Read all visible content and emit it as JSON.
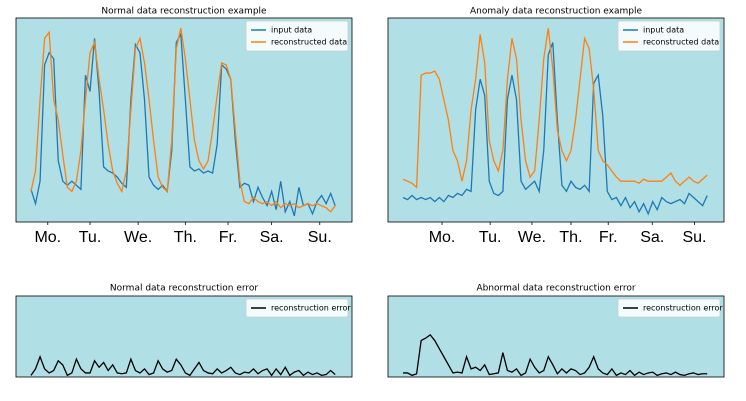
{
  "chart_data": [
    {
      "type": "line",
      "title": "Normal data reconstruction example",
      "x": [
        0,
        1,
        2,
        3,
        4,
        5,
        6,
        7,
        8,
        9,
        10,
        11,
        12,
        13,
        14,
        15,
        16,
        17,
        18,
        19,
        20,
        21,
        22,
        23,
        24,
        25,
        26,
        27,
        28,
        29,
        30,
        31,
        32,
        33,
        34,
        35,
        36,
        37,
        38,
        39,
        40,
        41,
        42,
        43,
        44,
        45,
        46,
        47,
        48,
        49,
        50,
        51,
        52,
        53,
        54,
        55,
        56,
        57,
        58,
        59,
        60,
        61,
        62,
        63,
        64,
        65,
        66,
        67
      ],
      "xlim": [
        -3.3,
        70.7
      ],
      "ylim": [
        0,
        1
      ],
      "xticks": [
        {
          "value": 3.7,
          "label": "Mo."
        },
        {
          "value": 13,
          "label": "Tu."
        },
        {
          "value": 23.6,
          "label": "We."
        },
        {
          "value": 34,
          "label": "Th."
        },
        {
          "value": 43.4,
          "label": "Fr."
        },
        {
          "value": 53,
          "label": "Sa."
        },
        {
          "value": 63.6,
          "label": "Su."
        }
      ],
      "facecolor": "#b0e0e6",
      "legend": "upper right",
      "series": [
        {
          "name": "input data",
          "color": "#1f77b4",
          "values": [
            0.16,
            0.09,
            0.2,
            0.77,
            0.83,
            0.8,
            0.3,
            0.2,
            0.18,
            0.2,
            0.18,
            0.16,
            0.72,
            0.64,
            0.9,
            0.64,
            0.27,
            0.25,
            0.24,
            0.22,
            0.19,
            0.17,
            0.6,
            0.87,
            0.83,
            0.6,
            0.22,
            0.18,
            0.16,
            0.18,
            0.15,
            0.35,
            0.88,
            0.92,
            0.6,
            0.27,
            0.25,
            0.26,
            0.24,
            0.25,
            0.24,
            0.38,
            0.77,
            0.75,
            0.7,
            0.4,
            0.17,
            0.19,
            0.18,
            0.1,
            0.17,
            0.12,
            0.08,
            0.15,
            0.06,
            0.2,
            0.05,
            0.1,
            0.03,
            0.17,
            0.08,
            0.09,
            0.04,
            0.1,
            0.13,
            0.09,
            0.14,
            0.08
          ]
        },
        {
          "name": "reconstructed data",
          "color": "#ff7f0e",
          "values": [
            0.15,
            0.25,
            0.6,
            0.9,
            0.93,
            0.6,
            0.5,
            0.33,
            0.17,
            0.15,
            0.2,
            0.35,
            0.6,
            0.83,
            0.88,
            0.7,
            0.55,
            0.38,
            0.25,
            0.19,
            0.15,
            0.25,
            0.55,
            0.85,
            0.9,
            0.78,
            0.6,
            0.4,
            0.22,
            0.17,
            0.15,
            0.4,
            0.85,
            0.95,
            0.8,
            0.6,
            0.4,
            0.3,
            0.26,
            0.3,
            0.45,
            0.62,
            0.78,
            0.77,
            0.7,
            0.45,
            0.2,
            0.1,
            0.09,
            0.12,
            0.1,
            0.09,
            0.1,
            0.08,
            0.1,
            0.07,
            0.09,
            0.08,
            0.09,
            0.07,
            0.08,
            0.09,
            0.08,
            0.09,
            0.08,
            0.07,
            0.05,
            0.08
          ]
        }
      ]
    },
    {
      "type": "line",
      "title": "Anomaly data reconstruction example",
      "x": [
        0,
        1,
        2,
        3,
        4,
        5,
        6,
        7,
        8,
        9,
        10,
        11,
        12,
        13,
        14,
        15,
        16,
        17,
        18,
        19,
        20,
        21,
        22,
        23,
        24,
        25,
        26,
        27,
        28,
        29,
        30,
        31,
        32,
        33,
        34,
        35,
        36,
        37,
        38,
        39,
        40,
        41,
        42,
        43,
        44,
        45,
        46,
        47,
        48,
        49,
        50,
        51,
        52,
        53,
        54,
        55,
        56,
        57,
        58,
        59,
        60,
        61,
        62,
        63,
        64,
        65,
        66,
        67
      ],
      "xlim": [
        -3.3,
        70.7
      ],
      "ylim": [
        0,
        1
      ],
      "xticks": [
        {
          "value": 8.6,
          "label": "Mo."
        },
        {
          "value": 19.2,
          "label": "Tu."
        },
        {
          "value": 28.4,
          "label": "We."
        },
        {
          "value": 37,
          "label": "Th."
        },
        {
          "value": 45.2,
          "label": "Fr."
        },
        {
          "value": 54.9,
          "label": "Sa."
        },
        {
          "value": 64.2,
          "label": "Su."
        }
      ],
      "facecolor": "#b0e0e6",
      "legend": "upper right",
      "series": [
        {
          "name": "input data",
          "color": "#1f77b4",
          "values": [
            0.12,
            0.11,
            0.13,
            0.11,
            0.12,
            0.11,
            0.12,
            0.1,
            0.12,
            0.1,
            0.13,
            0.12,
            0.14,
            0.13,
            0.16,
            0.15,
            0.55,
            0.7,
            0.62,
            0.2,
            0.14,
            0.13,
            0.15,
            0.6,
            0.72,
            0.6,
            0.2,
            0.16,
            0.18,
            0.2,
            0.15,
            0.35,
            0.82,
            0.88,
            0.5,
            0.18,
            0.15,
            0.2,
            0.17,
            0.16,
            0.18,
            0.15,
            0.68,
            0.72,
            0.52,
            0.15,
            0.11,
            0.12,
            0.08,
            0.12,
            0.07,
            0.1,
            0.05,
            0.09,
            0.04,
            0.1,
            0.06,
            0.12,
            0.1,
            0.09,
            0.1,
            0.11,
            0.09,
            0.14,
            0.12,
            0.1,
            0.08,
            0.13
          ]
        },
        {
          "name": "reconstructed data",
          "color": "#ff7f0e",
          "values": [
            0.21,
            0.2,
            0.19,
            0.17,
            0.72,
            0.73,
            0.73,
            0.74,
            0.7,
            0.6,
            0.5,
            0.35,
            0.3,
            0.2,
            0.3,
            0.55,
            0.7,
            0.92,
            0.78,
            0.4,
            0.3,
            0.25,
            0.35,
            0.7,
            0.9,
            0.8,
            0.5,
            0.3,
            0.22,
            0.25,
            0.5,
            0.8,
            0.95,
            0.75,
            0.45,
            0.35,
            0.3,
            0.35,
            0.5,
            0.7,
            0.9,
            0.85,
            0.65,
            0.35,
            0.3,
            0.28,
            0.25,
            0.22,
            0.2,
            0.2,
            0.2,
            0.2,
            0.19,
            0.21,
            0.2,
            0.2,
            0.2,
            0.2,
            0.22,
            0.24,
            0.2,
            0.18,
            0.2,
            0.22,
            0.2,
            0.19,
            0.21,
            0.23
          ]
        }
      ]
    },
    {
      "type": "line",
      "title": "Normal data reconstruction error",
      "x": [
        0,
        1,
        2,
        3,
        4,
        5,
        6,
        7,
        8,
        9,
        10,
        11,
        12,
        13,
        14,
        15,
        16,
        17,
        18,
        19,
        20,
        21,
        22,
        23,
        24,
        25,
        26,
        27,
        28,
        29,
        30,
        31,
        32,
        33,
        34,
        35,
        36,
        37,
        38,
        39,
        40,
        41,
        42,
        43,
        44,
        45,
        46,
        47,
        48,
        49,
        50,
        51,
        52,
        53,
        54,
        55,
        56,
        57,
        58,
        59,
        60,
        61,
        62,
        63,
        64,
        65,
        66,
        67
      ],
      "xlim": [
        -3.3,
        70.7
      ],
      "ylim": [
        0,
        1
      ],
      "facecolor": "#b0e0e6",
      "legend": "upper right",
      "series": [
        {
          "name": "reconstruction error",
          "color": "#000000",
          "values": [
            0.02,
            0.1,
            0.25,
            0.1,
            0.05,
            0.08,
            0.2,
            0.15,
            0.02,
            0.05,
            0.22,
            0.1,
            0.05,
            0.05,
            0.2,
            0.12,
            0.18,
            0.08,
            0.15,
            0.05,
            0.04,
            0.05,
            0.22,
            0.08,
            0.05,
            0.1,
            0.03,
            0.05,
            0.2,
            0.1,
            0.06,
            0.08,
            0.22,
            0.15,
            0.05,
            0.02,
            0.1,
            0.18,
            0.08,
            0.05,
            0.04,
            0.1,
            0.05,
            0.08,
            0.12,
            0.05,
            0.03,
            0.06,
            0.05,
            0.1,
            0.04,
            0.08,
            0.1,
            0.02,
            0.1,
            0.03,
            0.12,
            0.02,
            0.06,
            0.08,
            0.02,
            0.06,
            0.03,
            0.05,
            0.02,
            0.03,
            0.08,
            0.03
          ]
        }
      ]
    },
    {
      "type": "line",
      "title": "Abnormal data reconstruction error",
      "x": [
        0,
        1,
        2,
        3,
        4,
        5,
        6,
        7,
        8,
        9,
        10,
        11,
        12,
        13,
        14,
        15,
        16,
        17,
        18,
        19,
        20,
        21,
        22,
        23,
        24,
        25,
        26,
        27,
        28,
        29,
        30,
        31,
        32,
        33,
        34,
        35,
        36,
        37,
        38,
        39,
        40,
        41,
        42,
        43,
        44,
        45,
        46,
        47,
        48,
        49,
        50,
        51,
        52,
        53,
        54,
        55,
        56,
        57,
        58,
        59,
        60,
        61,
        62,
        63,
        64,
        65,
        66,
        67
      ],
      "xlim": [
        -3.3,
        70.7
      ],
      "ylim": [
        0,
        1
      ],
      "facecolor": "#b0e0e6",
      "legend": "upper right",
      "series": [
        {
          "name": "reconstruction error",
          "color": "#000000",
          "values": [
            0.05,
            0.05,
            0.02,
            0.04,
            0.45,
            0.48,
            0.52,
            0.45,
            0.35,
            0.25,
            0.15,
            0.05,
            0.06,
            0.05,
            0.25,
            0.1,
            0.12,
            0.08,
            0.15,
            0.03,
            0.04,
            0.05,
            0.3,
            0.08,
            0.06,
            0.1,
            0.02,
            0.05,
            0.22,
            0.12,
            0.05,
            0.08,
            0.25,
            0.15,
            0.04,
            0.1,
            0.05,
            0.1,
            0.08,
            0.03,
            0.05,
            0.12,
            0.25,
            0.1,
            0.05,
            0.03,
            0.1,
            0.02,
            0.05,
            0.03,
            0.08,
            0.02,
            0.06,
            0.03,
            0.05,
            0.06,
            0.02,
            0.04,
            0.05,
            0.03,
            0.06,
            0.03,
            0.02,
            0.04,
            0.05,
            0.03,
            0.04,
            0.04
          ]
        }
      ]
    }
  ]
}
